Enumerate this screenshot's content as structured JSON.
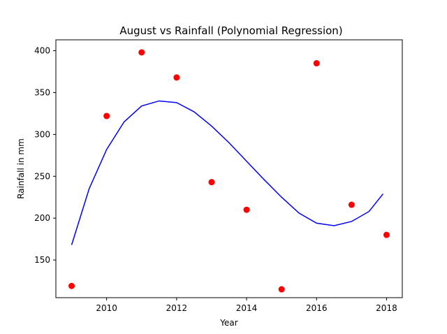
{
  "chart_data": {
    "type": "scatter",
    "title": "August vs Rainfall (Polynomial Regression)",
    "xlabel": "Year",
    "ylabel": "Rainfall in mm",
    "xlim": [
      2008.55,
      2018.45
    ],
    "ylim": [
      105,
      413
    ],
    "xticks": [
      "2010",
      "2012",
      "2014",
      "2016",
      "2018"
    ],
    "yticks": [
      "150",
      "200",
      "250",
      "300",
      "350",
      "400"
    ],
    "grid": false,
    "colors": {
      "points": "#ff0000",
      "fit": "#0000ff"
    },
    "series": [
      {
        "kind": "points",
        "x": [
          2009,
          2010,
          2011,
          2012,
          2013,
          2014,
          2015,
          2016,
          2017,
          2018
        ],
        "y": [
          119,
          322,
          398,
          368,
          243,
          210,
          115,
          385,
          216,
          180
        ]
      },
      {
        "kind": "line",
        "x": [
          2009,
          2009.5,
          2010,
          2010.5,
          2011,
          2011.5,
          2012,
          2012.5,
          2013,
          2013.5,
          2014,
          2014.5,
          2015,
          2015.5,
          2016,
          2016.5,
          2017,
          2017.5,
          2017.9
        ],
        "y": [
          168,
          235,
          282,
          315,
          334,
          340,
          338,
          327,
          310,
          290,
          268,
          246,
          225,
          206,
          194,
          191,
          196,
          208,
          229
        ]
      }
    ]
  }
}
